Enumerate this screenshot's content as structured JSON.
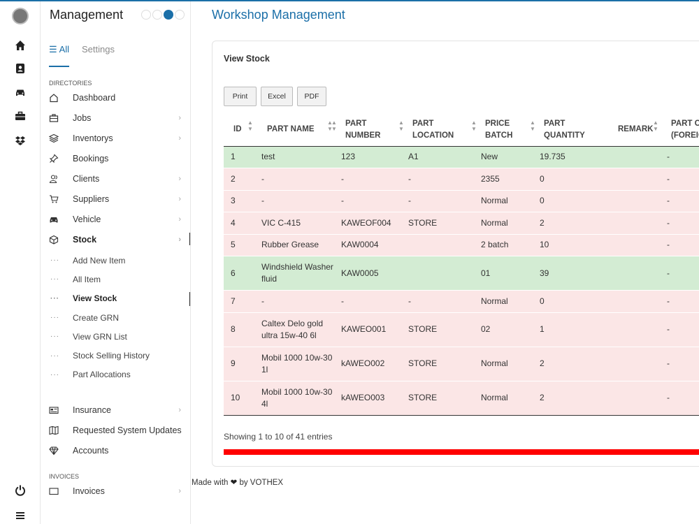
{
  "sidebar": {
    "brand": "Management",
    "tabs": {
      "all": "All",
      "settings": "Settings"
    },
    "sections": {
      "directories": "DIRECTORIES",
      "invoices": "INVOICES"
    },
    "items": [
      {
        "label": "Dashboard",
        "icon": "home-outline-icon",
        "chevron": false
      },
      {
        "label": "Jobs",
        "icon": "briefcase-icon",
        "chevron": true
      },
      {
        "label": "Inventorys",
        "icon": "layers-icon",
        "chevron": true
      },
      {
        "label": "Bookings",
        "icon": "pin-icon",
        "chevron": false
      },
      {
        "label": "Clients",
        "icon": "users-icon",
        "chevron": true
      },
      {
        "label": "Suppliers",
        "icon": "cart-icon",
        "chevron": true
      },
      {
        "label": "Vehicle",
        "icon": "car-icon",
        "chevron": true
      },
      {
        "label": "Stock",
        "icon": "cube-icon",
        "chevron": true
      }
    ],
    "stock_sub": [
      {
        "label": "Add New Item"
      },
      {
        "label": "All Item"
      },
      {
        "label": "View Stock"
      },
      {
        "label": "Create GRN"
      },
      {
        "label": "View GRN List"
      },
      {
        "label": "Stock Selling History"
      },
      {
        "label": "Part Allocations"
      }
    ],
    "items2": [
      {
        "label": "Insurance",
        "icon": "card-icon",
        "chevron": true
      },
      {
        "label": "Requested System Updates",
        "icon": "map-icon",
        "chevron": false
      },
      {
        "label": "Accounts",
        "icon": "diamond-icon",
        "chevron": false
      }
    ],
    "invoice_item": {
      "label": "Invoices"
    },
    "sub_marker": "···"
  },
  "main": {
    "title": "Workshop Management",
    "card_title": "View Stock",
    "buttons": {
      "print": "Print",
      "excel": "Excel",
      "pdf": "PDF"
    },
    "columns": [
      "ID",
      "PART NAME",
      "PART NUMBER",
      "PART LOCATION",
      "PRICE BATCH",
      "PART QUANTITY",
      "REMARK",
      "PART COST (FOREIGN)"
    ],
    "column_display": [
      "ID",
      "PART NAME",
      "PART\nNUMBER",
      "PART\nLOCATION",
      "PRICE\nBATCH",
      "PART\nQUANTITY",
      "REMARK",
      "PART CO\n(FOREIG"
    ],
    "rows": [
      {
        "id": "1",
        "name": "test",
        "number": "123",
        "location": "A1",
        "batch": "New",
        "qty": "19.735",
        "remark": "",
        "cost": "-",
        "status": "green"
      },
      {
        "id": "2",
        "name": "-",
        "number": "-",
        "location": "-",
        "batch": "2355",
        "qty": "0",
        "remark": "",
        "cost": "-",
        "status": "red"
      },
      {
        "id": "3",
        "name": "-",
        "number": "-",
        "location": "-",
        "batch": "Normal",
        "qty": "0",
        "remark": "",
        "cost": "-",
        "status": "red"
      },
      {
        "id": "4",
        "name": "VIC C-415",
        "number": "KAWEOF004",
        "location": "STORE",
        "batch": "Normal",
        "qty": "2",
        "remark": "",
        "cost": "-",
        "status": "red"
      },
      {
        "id": "5",
        "name": "Rubber Grease",
        "number": "KAW0004",
        "location": "",
        "batch": "2 batch",
        "qty": "10",
        "remark": "",
        "cost": "-",
        "status": "red"
      },
      {
        "id": "6",
        "name": "Windshield Washer fluid",
        "number": "KAW0005",
        "location": "",
        "batch": "01",
        "qty": "39",
        "remark": "",
        "cost": "-",
        "status": "green"
      },
      {
        "id": "7",
        "name": "-",
        "number": "-",
        "location": "-",
        "batch": "Normal",
        "qty": "0",
        "remark": "",
        "cost": "-",
        "status": "red"
      },
      {
        "id": "8",
        "name": "Caltex Delo gold ultra 15w-40 6l",
        "number": "KAWEO001",
        "location": "STORE",
        "batch": "02",
        "qty": "1",
        "remark": "",
        "cost": "-",
        "status": "red"
      },
      {
        "id": "9",
        "name": "Mobil 1000 10w-30 1l",
        "number": "kAWEO002",
        "location": "STORE",
        "batch": "Normal",
        "qty": "2",
        "remark": "",
        "cost": "-",
        "status": "red"
      },
      {
        "id": "10",
        "name": "Mobil 1000 10w-30 4l",
        "number": "kAWEO003",
        "location": "STORE",
        "batch": "Normal",
        "qty": "2",
        "remark": "",
        "cost": "-",
        "status": "red"
      }
    ],
    "entries_info": "Showing 1 to 10 of 41 entries"
  },
  "footer": {
    "made_with": "Made with",
    "heart": "❤",
    "by": "by VOTHEX"
  },
  "colors": {
    "accent": "#1b6fa8",
    "row_green": "#d3ecd3",
    "row_red": "#fbe6e6",
    "bar": "#ff0000"
  }
}
